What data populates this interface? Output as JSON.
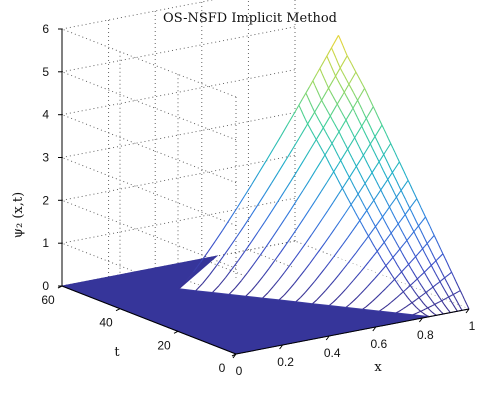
{
  "chart_data": {
    "type": "surface",
    "title": "OS-NSFD Implicit Method",
    "xlabel": "x",
    "ylabel": "t",
    "zlabel": "ψ₂ (x,t)",
    "xlim": [
      0,
      1
    ],
    "ylim": [
      0,
      60
    ],
    "zlim": [
      0,
      6
    ],
    "xticks": [
      "0",
      "0.2",
      "0.4",
      "0.6",
      "0.8",
      "1"
    ],
    "yticks": [
      "0",
      "20",
      "40",
      "60"
    ],
    "zticks": [
      "0",
      "1",
      "2",
      "3",
      "4",
      "5",
      "6"
    ],
    "grid": true,
    "colormap": [
      "#3b2f8c",
      "#3b4fc8",
      "#2f7fe0",
      "#1fb0c8",
      "#3fcf9a",
      "#9fd85f",
      "#e6d53a",
      "#fbe62e"
    ],
    "flat_color": "#36359a",
    "x_edge_values": [
      0.83,
      0.86,
      0.89,
      0.92,
      0.95,
      0.97,
      1.0
    ],
    "t_levels": [
      0,
      3,
      6,
      9,
      12,
      15,
      18,
      21,
      24,
      27,
      30,
      33,
      36,
      39,
      42,
      45
    ],
    "edge_profile_at_x1": {
      "t": [
        0,
        3,
        6,
        9,
        12,
        15,
        18,
        21,
        24,
        27,
        30,
        33,
        36,
        39,
        42,
        45
      ],
      "psi": [
        0.0,
        0.35,
        0.7,
        1.05,
        1.4,
        1.75,
        2.1,
        2.45,
        2.8,
        3.15,
        3.5,
        3.85,
        4.2,
        4.5,
        4.8,
        5.2
      ]
    }
  }
}
